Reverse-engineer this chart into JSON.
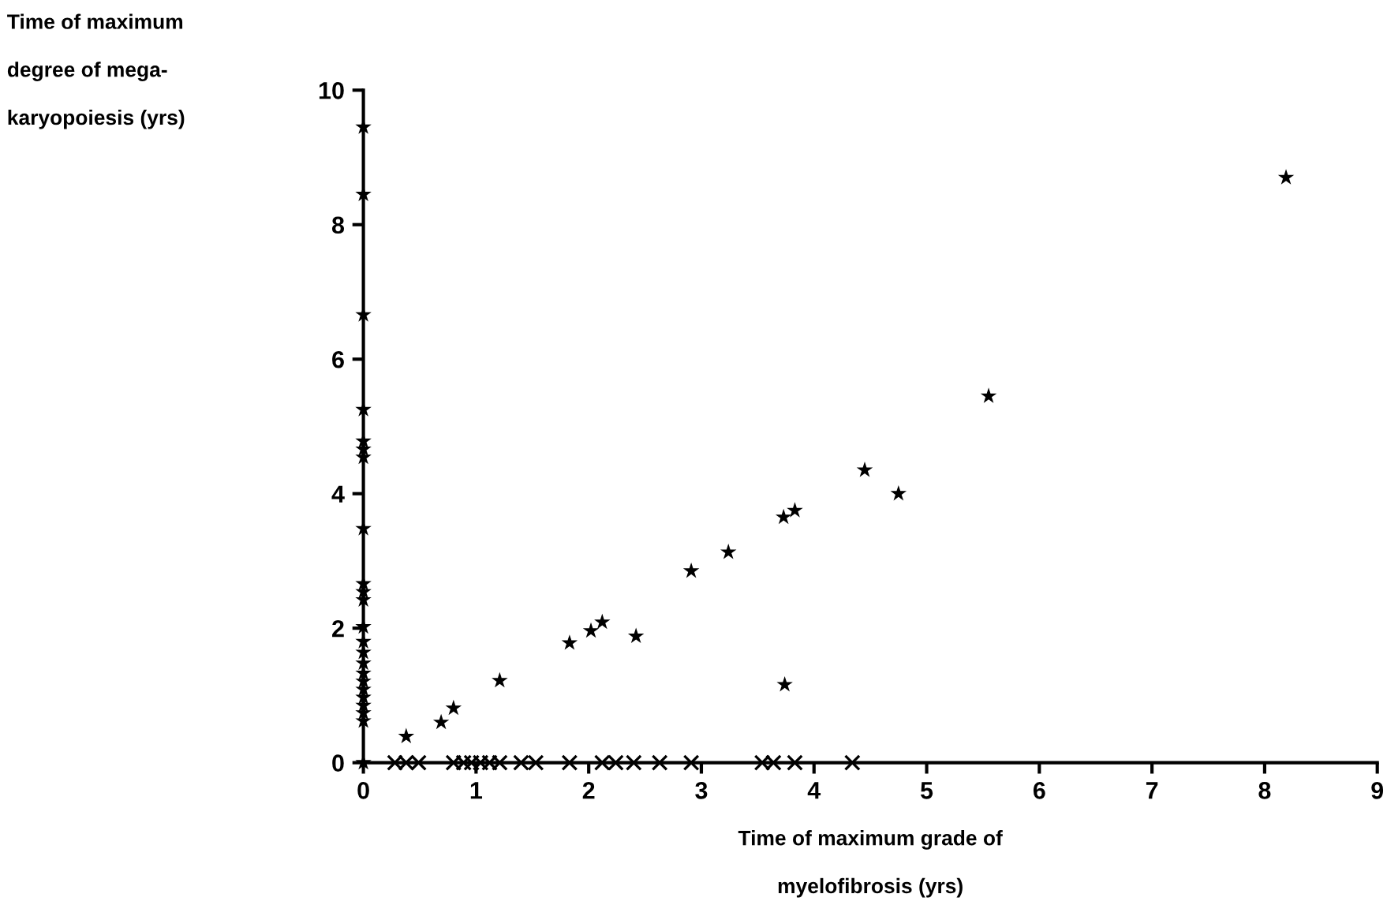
{
  "chart_data": {
    "type": "scatter",
    "xlabel": "Time of maximum grade of\n\nmyelofibrosis (yrs)",
    "ylabel": "Time of maximum\n\ndegree of mega-\n\nkaryopoiesis (yrs)",
    "xlim": [
      0,
      9
    ],
    "ylim": [
      0,
      10
    ],
    "xticks": [
      0,
      1,
      2,
      3,
      4,
      5,
      6,
      7,
      8,
      9
    ],
    "yticks": [
      0,
      2,
      4,
      6,
      8,
      10
    ],
    "grid": false,
    "legend": false,
    "series": [
      {
        "color": "#000000",
        "marker": "star",
        "x": [
          0.38,
          0.69,
          0.8,
          1.21,
          1.83,
          2.02,
          2.12,
          2.42,
          2.91,
          3.24,
          3.74,
          3.73,
          3.83,
          4.45,
          4.75,
          5.55,
          8.19,
          0,
          0,
          0,
          0,
          0,
          0,
          0,
          0,
          0,
          0,
          0,
          0,
          0,
          0,
          0,
          0,
          0,
          0,
          0,
          0,
          0,
          0,
          0
        ],
        "values": [
          0.39,
          0.6,
          0.81,
          1.22,
          1.78,
          1.96,
          2.09,
          1.88,
          2.85,
          3.13,
          1.16,
          3.65,
          3.75,
          4.35,
          4.0,
          5.45,
          8.7,
          9.45,
          8.45,
          6.66,
          5.25,
          4.78,
          4.66,
          4.54,
          3.48,
          2.66,
          2.54,
          2.42,
          2.02,
          1.8,
          1.64,
          1.48,
          1.33,
          1.21,
          1.09,
          0.97,
          0.85,
          0.74,
          0.62,
          0
        ]
      },
      {
        "color": "#000000",
        "marker": "cross",
        "x": [
          0.28,
          0.38,
          0.49,
          0.8,
          0.89,
          0.96,
          1.04,
          1.12,
          1.21,
          1.4,
          1.53,
          1.83,
          2.12,
          2.24,
          2.4,
          2.63,
          2.91,
          3.54,
          3.64,
          3.83,
          4.34
        ],
        "values": [
          0,
          0,
          0,
          0,
          0,
          0,
          0,
          0,
          0,
          0,
          0,
          0,
          0,
          0,
          0,
          0,
          0,
          0,
          0,
          0,
          0
        ]
      }
    ]
  }
}
